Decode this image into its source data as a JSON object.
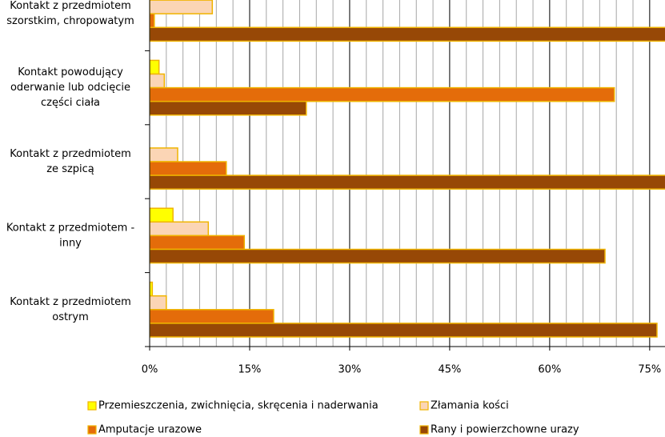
{
  "chart_data": {
    "type": "hbar",
    "categories": [
      [
        "Kontakt z przedmiotem",
        "szorstkim, chropowatym"
      ],
      [
        "Kontakt powodujący",
        "oderwanie lub odcięcie",
        "części ciała"
      ],
      [
        "Kontakt z przedmiotem",
        "ze szpicą"
      ],
      [
        "Kontakt z przedmiotem -",
        "inny"
      ],
      [
        "Kontakt z przedmiotem",
        "ostrym"
      ]
    ],
    "series": [
      {
        "name": "Przemieszczenia, zwichnięcia, skręcenia i naderwania",
        "color": "#ffff00",
        "values": [
          null,
          1.4,
          null,
          3.5,
          0.4
        ]
      },
      {
        "name": "Złamania kości",
        "color": "#fbd5b5",
        "values": [
          9.4,
          2.2,
          4.2,
          8.8,
          2.5
        ]
      },
      {
        "name": "Amputacje urazowe",
        "color": "#e46c0a",
        "values": [
          0.7,
          69.7,
          11.5,
          14.2,
          18.6
        ]
      },
      {
        "name": "Rany i powierzchowne urazy",
        "color": "#974806",
        "values": [
          80,
          23.5,
          80,
          68.3,
          76.1
        ]
      }
    ],
    "xlim": [
      0,
      77.3
    ],
    "xticks": [
      {
        "value": 0,
        "label": "0%"
      },
      {
        "value": 15,
        "label": "15%"
      },
      {
        "value": 30,
        "label": "30%"
      },
      {
        "value": 45,
        "label": "45%"
      },
      {
        "value": 60,
        "label": "60%"
      },
      {
        "value": 75,
        "label": "75%"
      }
    ],
    "minor_xticks": [
      2.5,
      5,
      7.5,
      10,
      12.5,
      17.5,
      20,
      22.5,
      25,
      27.5,
      32.5,
      35,
      37.5,
      40,
      42.5,
      47.5,
      50,
      52.5,
      55,
      57.5,
      62.5,
      65,
      67.5,
      70,
      72.5,
      77.5
    ],
    "grid": true,
    "legend": "bottom",
    "bar_edge_color": "#f0b400"
  }
}
